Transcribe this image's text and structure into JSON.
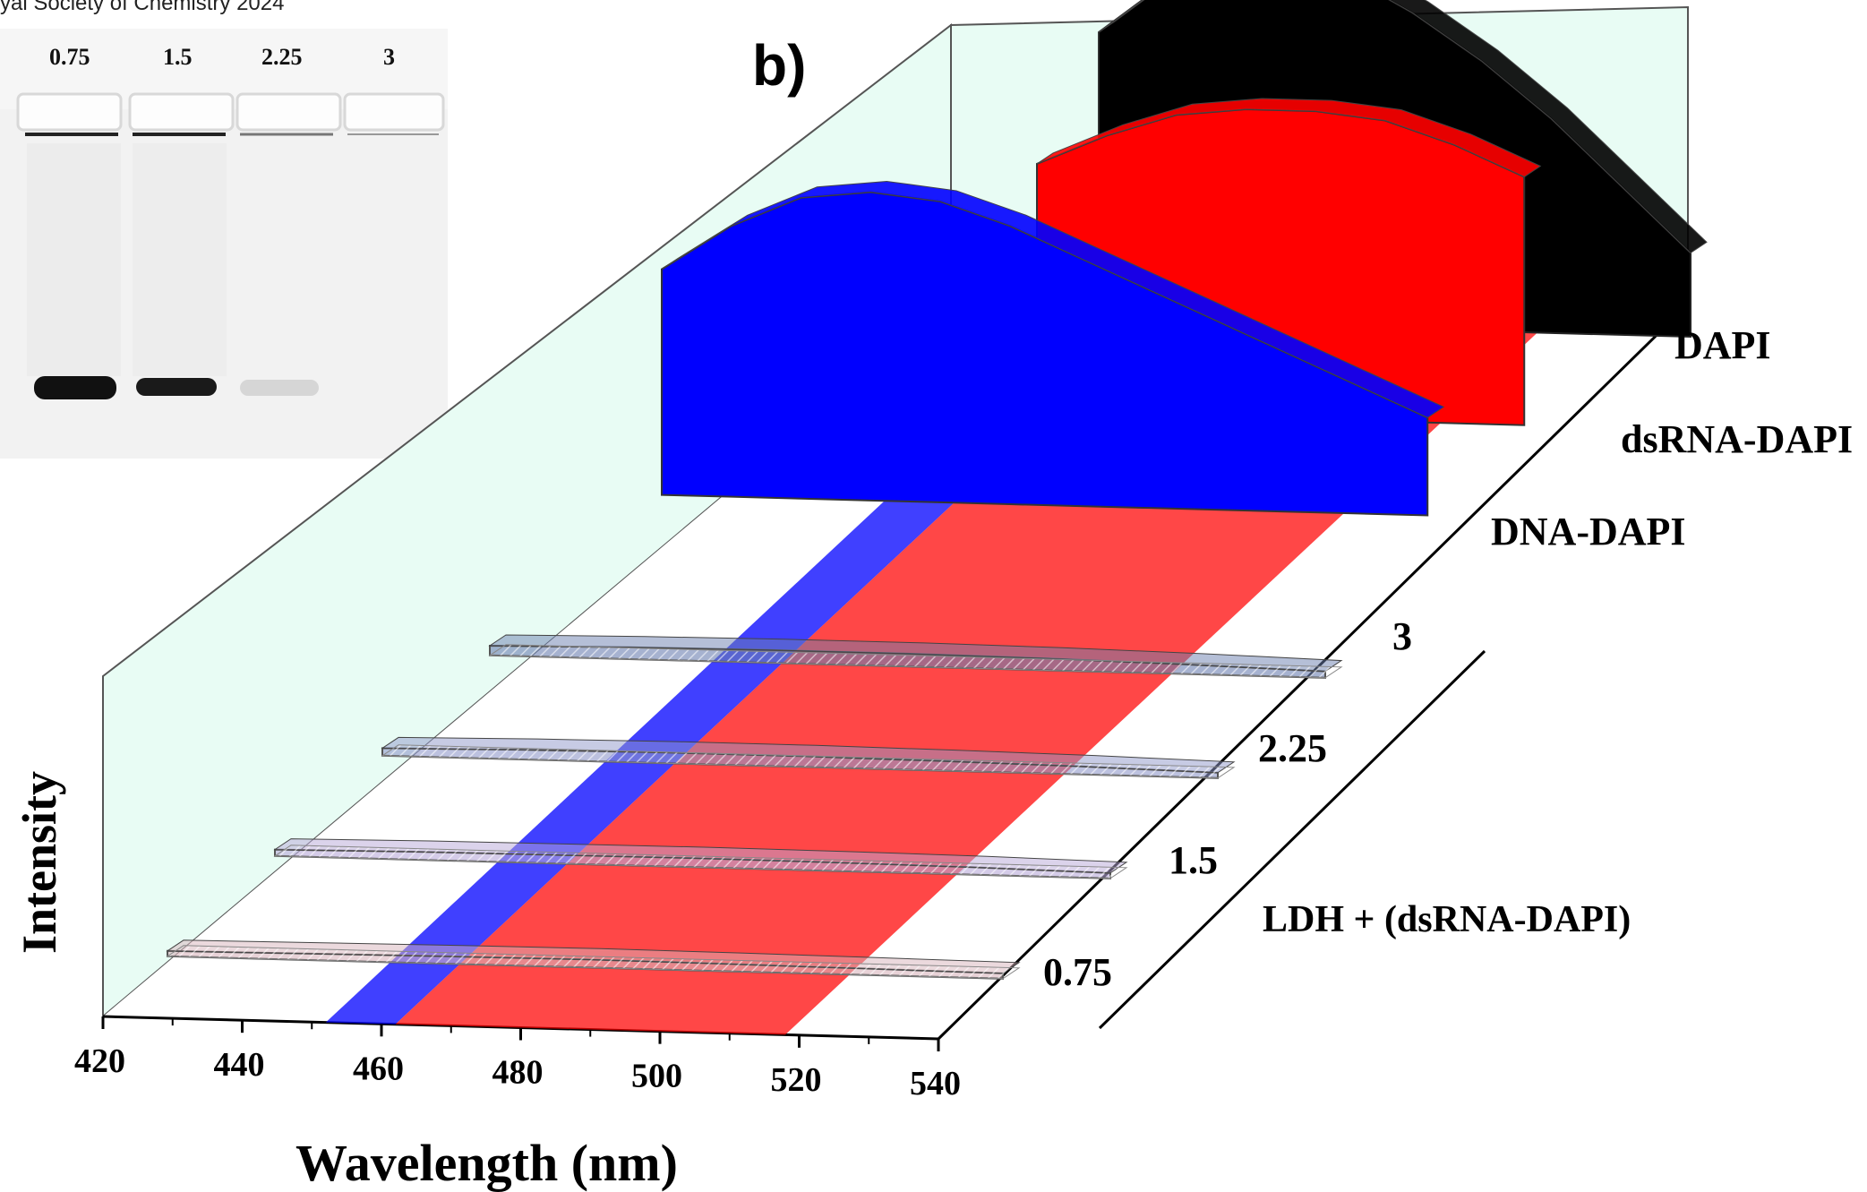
{
  "credit": "yal Society of Chemistry 2024",
  "gel": {
    "lane_labels": [
      "0.75",
      "1.5",
      "2.25",
      "3"
    ]
  },
  "chart_data": {
    "type": "area",
    "panel_label": "b)",
    "xlabel": "Wavelength (nm)",
    "ylabel": "Intensity",
    "xlim": [
      420,
      540
    ],
    "x_ticks": [
      420,
      440,
      460,
      480,
      500,
      520,
      540
    ],
    "group_label": "LDH + (dsRNA-DAPI)",
    "series": [
      {
        "name": "DAPI",
        "color": "#000000",
        "x": [
          455,
          462,
          470,
          480,
          490,
          500,
          510,
          520,
          530,
          540
        ],
        "y": [
          0.62,
          0.7,
          0.78,
          0.8,
          0.76,
          0.68,
          0.58,
          0.46,
          0.32,
          0.18
        ]
      },
      {
        "name": "dsRNA-DAPI",
        "color": "#ff0000",
        "x": [
          460,
          470,
          480,
          490,
          500,
          510,
          520,
          530
        ],
        "y": [
          0.66,
          0.74,
          0.8,
          0.82,
          0.82,
          0.8,
          0.74,
          0.66
        ]
      },
      {
        "name": "DNA-DAPI",
        "color": "#0000ff",
        "x": [
          420,
          430,
          440,
          450,
          460,
          470,
          480,
          490,
          500,
          510,
          520,
          530
        ],
        "y": [
          0.6,
          0.72,
          0.8,
          0.82,
          0.8,
          0.74,
          0.66,
          0.58,
          0.5,
          0.42,
          0.34,
          0.26
        ]
      },
      {
        "name": "3",
        "color": "#6b7fb0",
        "x": [
          420,
          440,
          460,
          480,
          500,
          520,
          540
        ],
        "y": [
          0.18,
          0.22,
          0.24,
          0.24,
          0.22,
          0.18,
          0.12
        ]
      },
      {
        "name": "2.25",
        "color": "#8f97c9",
        "x": [
          420,
          440,
          460,
          480,
          500,
          520,
          540
        ],
        "y": [
          0.14,
          0.18,
          0.2,
          0.2,
          0.18,
          0.15,
          0.1
        ]
      },
      {
        "name": "1.5",
        "color": "#b8a8d8",
        "x": [
          420,
          440,
          460,
          480,
          500,
          520,
          540
        ],
        "y": [
          0.12,
          0.15,
          0.16,
          0.17,
          0.16,
          0.14,
          0.1
        ]
      },
      {
        "name": "0.75",
        "color": "#d8b4bc",
        "x": [
          420,
          440,
          460,
          480,
          500,
          520,
          540
        ],
        "y": [
          0.1,
          0.12,
          0.14,
          0.15,
          0.14,
          0.12,
          0.1
        ]
      }
    ],
    "highlight_bands": [
      {
        "color": "#0000ff",
        "x": [
          452,
          462
        ]
      },
      {
        "color": "#ff0000",
        "x": [
          462,
          518
        ]
      }
    ],
    "grid": false
  }
}
